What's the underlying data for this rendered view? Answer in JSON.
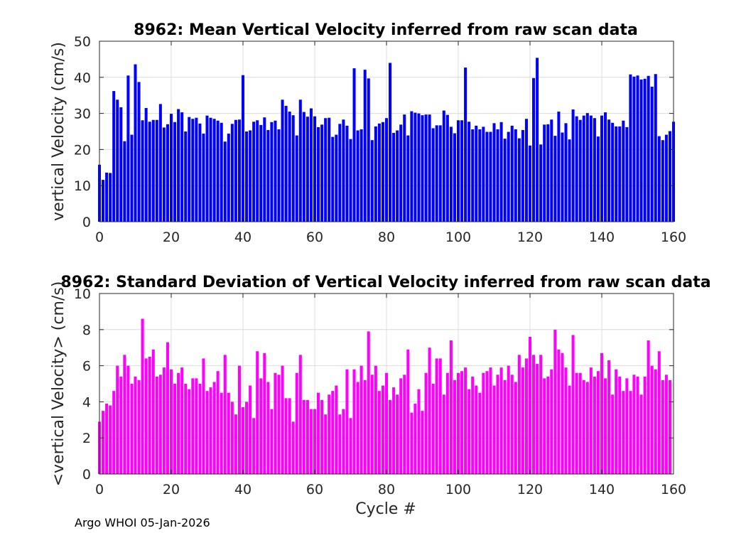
{
  "footer": "Argo WHOI 05-Jan-2026",
  "chart_data": [
    {
      "type": "bar",
      "title": "8962: Mean Vertical Velocity inferred from raw scan data",
      "xlabel": "",
      "ylabel": "vertical Velocity (cm/s)",
      "xlim": [
        0,
        160
      ],
      "ylim": [
        0,
        50
      ],
      "xticks": [
        0,
        20,
        40,
        60,
        80,
        100,
        120,
        140,
        160
      ],
      "yticks": [
        0,
        10,
        20,
        30,
        40,
        50
      ],
      "color": "#0000ff",
      "x_start": 0,
      "values": [
        15.8,
        11.6,
        13.6,
        13.5,
        36.2,
        33.8,
        31.7,
        22.3,
        40.5,
        24.1,
        43.6,
        38.7,
        28.1,
        31.5,
        27.7,
        28.2,
        28.2,
        32.6,
        26.1,
        27.0,
        29.9,
        27.6,
        31.2,
        30.3,
        25.0,
        29.0,
        28.5,
        28.8,
        27.2,
        24.4,
        29.4,
        28.8,
        28.5,
        28.0,
        27.4,
        22.2,
        24.4,
        27.1,
        28.2,
        28.3,
        40.6,
        25.0,
        25.3,
        27.7,
        28.1,
        26.8,
        28.9,
        25.4,
        27.6,
        28.0,
        25.6,
        33.8,
        32.1,
        30.5,
        29.5,
        23.9,
        33.8,
        30.4,
        29.1,
        31.4,
        29.2,
        26.2,
        26.9,
        28.7,
        28.8,
        23.5,
        24.1,
        27.1,
        28.3,
        26.6,
        22.9,
        42.5,
        25.3,
        25.6,
        42.1,
        39.7,
        22.6,
        26.4,
        27.2,
        27.6,
        28.7,
        44.0,
        24.6,
        25.3,
        26.9,
        29.7,
        23.9,
        30.6,
        30.2,
        30.0,
        29.5,
        29.7,
        29.7,
        25.9,
        26.7,
        26.7,
        30.8,
        29.6,
        26.3,
        24.5,
        28.1,
        28.1,
        42.7,
        27.7,
        25.6,
        26.6,
        25.6,
        26.3,
        24.9,
        24.9,
        27.3,
        25.6,
        27.6,
        23.0,
        24.9,
        26.6,
        25.6,
        23.1,
        25.4,
        28.5,
        21.1,
        39.8,
        45.4,
        21.4,
        26.9,
        27.0,
        28.3,
        23.8,
        30.5,
        24.7,
        27.3,
        22.8,
        31.1,
        29.2,
        28.2,
        29.4,
        30.1,
        29.4,
        28.7,
        23.6,
        29.4,
        30.3,
        28.3,
        27.4,
        26.4,
        26.4,
        28.0,
        26.2,
        40.8,
        40.2,
        40.5,
        39.4,
        39.6,
        40.4,
        37.4,
        40.9,
        23.7,
        22.6,
        24.1,
        25.1,
        27.7
      ]
    },
    {
      "type": "bar",
      "title": "8962: Standard Deviation of Vertical Velocity inferred from raw scan data",
      "xlabel": "Cycle #",
      "ylabel": "<vertical Velocity> (cm/s)",
      "xlim": [
        0,
        160
      ],
      "ylim": [
        0,
        10
      ],
      "xticks": [
        0,
        20,
        40,
        60,
        80,
        100,
        120,
        140,
        160
      ],
      "yticks": [
        0,
        2,
        4,
        6,
        8,
        10
      ],
      "color": "#ff00ff",
      "x_start": 0,
      "values": [
        2.9,
        3.5,
        3.9,
        3.8,
        4.6,
        6.0,
        5.4,
        6.6,
        6.0,
        5.0,
        5.4,
        5.2,
        8.6,
        6.4,
        6.5,
        6.9,
        5.4,
        5.5,
        5.9,
        7.3,
        5.8,
        5.0,
        5.6,
        5.9,
        5.0,
        4.7,
        5.3,
        5.3,
        5.0,
        6.4,
        4.6,
        4.8,
        5.1,
        5.7,
        4.5,
        6.6,
        4.5,
        4.0,
        3.3,
        6.0,
        3.7,
        4.0,
        4.9,
        3.1,
        6.8,
        5.3,
        6.7,
        5.1,
        3.6,
        5.6,
        5.5,
        6.0,
        4.2,
        4.2,
        2.9,
        5.6,
        6.6,
        4.1,
        4.1,
        3.6,
        3.6,
        4.5,
        4.1,
        3.3,
        4.4,
        4.6,
        4.9,
        3.3,
        3.6,
        5.8,
        3.1,
        5.8,
        5.1,
        6.0,
        5.2,
        7.9,
        5.5,
        6.0,
        4.6,
        4.9,
        5.6,
        4.1,
        4.8,
        4.4,
        5.3,
        5.5,
        6.9,
        3.4,
        3.9,
        4.7,
        3.5,
        5.6,
        7.0,
        5.0,
        6.4,
        6.4,
        4.4,
        5.6,
        7.4,
        5.2,
        5.6,
        5.7,
        5.9,
        4.7,
        5.4,
        4.9,
        4.5,
        5.6,
        5.7,
        5.9,
        4.9,
        5.5,
        5.9,
        5.2,
        6.0,
        5.5,
        5.1,
        6.6,
        5.9,
        6.4,
        7.6,
        6.6,
        6.1,
        6.6,
        5.3,
        5.4,
        5.8,
        8.0,
        6.9,
        6.7,
        5.9,
        4.9,
        7.7,
        5.6,
        5.6,
        5.2,
        5.1,
        5.9,
        5.4,
        5.7,
        6.7,
        5.3,
        6.3,
        4.4,
        5.8,
        5.4,
        4.6,
        5.3,
        4.6,
        5.5,
        5.4,
        4.4,
        5.4,
        7.4,
        6.0,
        5.8,
        6.8,
        5.2,
        5.5,
        5.2
      ]
    }
  ]
}
